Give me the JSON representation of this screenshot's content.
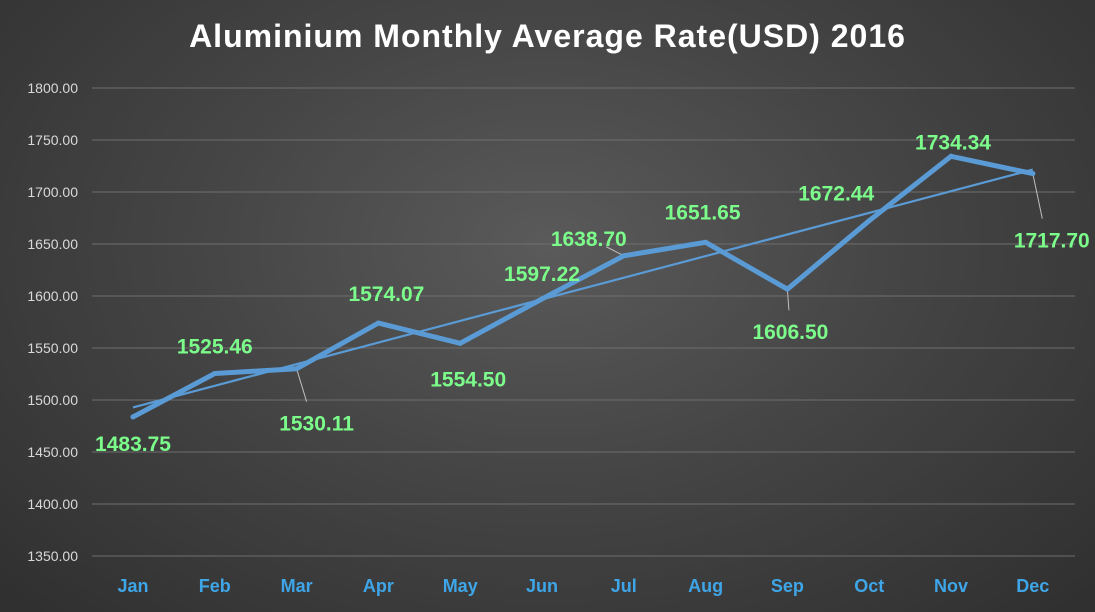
{
  "chart_data": {
    "type": "line",
    "title": "Aluminium Monthly Average Rate(USD)  2016",
    "categories": [
      "Jan",
      "Feb",
      "Mar",
      "Apr",
      "May",
      "Jun",
      "Jul",
      "Aug",
      "Sep",
      "Oct",
      "Nov",
      "Dec"
    ],
    "series": [
      {
        "values": [
          1483.75,
          1525.46,
          1530.11,
          1574.07,
          1554.5,
          1597.22,
          1638.7,
          1651.65,
          1606.5,
          1672.44,
          1734.34,
          1717.7
        ],
        "data_labels": [
          "1483.75",
          "1525.46",
          "1530.11",
          "1574.07",
          "1554.50",
          "1597.22",
          "1638.70",
          "1651.65",
          "1606.50",
          "1672.44",
          "1734.34",
          "1717.70"
        ]
      }
    ],
    "trendline": {
      "type": "linear",
      "visible": true
    },
    "ylim": [
      1350,
      1800
    ],
    "yticks": [
      "1350.00",
      "1400.00",
      "1450.00",
      "1500.00",
      "1550.00",
      "1600.00",
      "1650.00",
      "1700.00",
      "1750.00",
      "1800.00"
    ],
    "xlabel": "",
    "ylabel": "",
    "grid": true,
    "legend": "none",
    "colors": {
      "line": "#5b9bd5",
      "data_label": "#7cfc8a",
      "category_label": "#3ea6e8",
      "tick_label": "#d9d9d9",
      "gridline": "#6e6e6e",
      "title": "#ffffff"
    }
  }
}
